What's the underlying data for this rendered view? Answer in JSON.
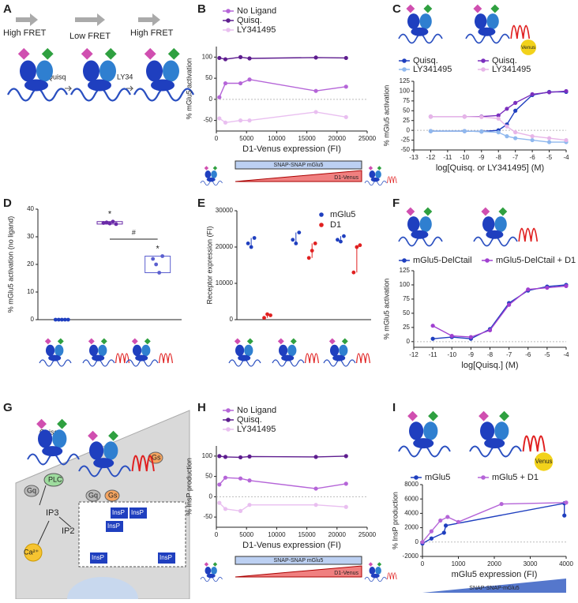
{
  "diagrams": {
    "A": {
      "panel": "A",
      "labels": [
        "High FRET",
        "Low FRET",
        "High FRET",
        "Quisq",
        "LY34"
      ]
    },
    "G": {
      "panel": "G",
      "labels": [
        "Quisq",
        "PLC",
        "Gq",
        "Gq",
        "Gs",
        "Gs",
        "IP3",
        "IP2",
        "Ca²⁺",
        "InsP",
        "InsP",
        "InsP",
        "InsP",
        "InsP"
      ]
    }
  },
  "chart_data": [
    {
      "panel": "B",
      "type": "line",
      "y_label": "% mGlu5 activation",
      "x_label": "D1-Venus expression (FI)",
      "x": [
        500,
        1500,
        4000,
        5500,
        16500,
        21500
      ],
      "series": [
        {
          "name": "No Ligand",
          "color": "#b565d8",
          "values": [
            5,
            38,
            38,
            47,
            20,
            30
          ]
        },
        {
          "name": "Quisq.",
          "color": "#5e1d8f",
          "values": [
            98,
            95,
            100,
            97,
            99,
            98
          ]
        },
        {
          "name": "LY341495",
          "color": "#e9bff0",
          "values": [
            -45,
            -55,
            -50,
            -50,
            -30,
            -42
          ]
        }
      ],
      "xlim": [
        0,
        25000
      ],
      "xticks": [
        0,
        5000,
        10000,
        15000,
        20000,
        25000
      ],
      "ylim": [
        -75,
        125
      ],
      "yticks": [
        -50,
        0,
        50,
        100
      ],
      "bar_labels": [
        "SNAP-SNAP mGlu5",
        "D1-Venus"
      ]
    },
    {
      "panel": "C",
      "type": "line",
      "y_label": "% mGlu5 activation",
      "x_label": "log[Quisq. or LY341495] (M)",
      "icon_label": "Venus",
      "x": [
        -12,
        -10,
        -9,
        -8,
        -7.5,
        -7,
        -6,
        -5,
        -4
      ],
      "series": [
        {
          "name": "Quisq.",
          "color": "#1f3fbf",
          "values": [
            -2,
            -2,
            -3,
            0,
            15,
            50,
            90,
            98,
            98
          ]
        },
        {
          "name": "LY341495",
          "color": "#8fb8ee",
          "values": [
            -2,
            -2,
            -3,
            -5,
            -15,
            -20,
            -25,
            -30,
            -30
          ]
        },
        {
          "name": "Quisq.",
          "color": "#7b2fbe",
          "values": [
            35,
            35,
            35,
            38,
            55,
            70,
            92,
            97,
            100
          ]
        },
        {
          "name": "LY341495",
          "color": "#e7b5e8",
          "values": [
            35,
            35,
            34,
            30,
            10,
            -5,
            -15,
            -20,
            -25
          ]
        }
      ],
      "xlim": [
        -13,
        -4
      ],
      "xticks": [
        -13,
        -12,
        -11,
        -10,
        -9,
        -8,
        -7,
        -6,
        -5,
        -4
      ],
      "ylim": [
        -50,
        125
      ],
      "yticks": [
        -50,
        -25,
        0,
        25,
        50,
        75,
        100,
        125
      ]
    },
    {
      "panel": "D",
      "type": "dot",
      "y_label": "% mGlu5 activation (no ligand)",
      "categories": [
        null,
        null,
        null
      ],
      "colors": [
        "#1f3fbf",
        "#6a2aa8",
        "#5b5fcf"
      ],
      "values": [
        [
          0,
          0,
          0,
          0,
          0
        ],
        [
          35,
          35.2,
          34.8,
          35.5,
          34.6
        ],
        [
          22,
          20,
          17,
          23
        ]
      ],
      "ylim": [
        0,
        40
      ],
      "yticks": [
        0,
        10,
        20,
        30,
        40
      ],
      "annotations": [
        "*",
        "*",
        "#"
      ]
    },
    {
      "panel": "E",
      "type": "dot",
      "y_label": "Receptor expression (FI)",
      "categories": [
        null,
        null,
        null
      ],
      "series": [
        {
          "name": "mGlu5",
          "color": "#1f3fbf",
          "values": [
            [
              21000,
              20000,
              22500
            ],
            [
              22000,
              21000,
              24000
            ],
            [
              22000,
              21500,
              23000
            ]
          ]
        },
        {
          "name": "D1",
          "color": "#e02020",
          "values": [
            [
              500,
              1500,
              1200
            ],
            [
              17000,
              19000,
              21000
            ],
            [
              13000,
              20000,
              20500
            ]
          ]
        }
      ],
      "ylim": [
        0,
        30000
      ],
      "yticks": [
        0,
        10000,
        20000,
        30000
      ]
    },
    {
      "panel": "F",
      "type": "line",
      "y_label": "% mGlu5 activation",
      "x_label": "log[Quisq.] (M)",
      "x": [
        -11,
        -10,
        -9,
        -8,
        -7,
        -6,
        -5,
        -4
      ],
      "series": [
        {
          "name": "mGlu5-DelCtail",
          "color": "#1f3fbf",
          "values": [
            5,
            8,
            5,
            22,
            68,
            90,
            97,
            100
          ]
        },
        {
          "name": "mGlu5-DelCtail + D1",
          "color": "#a040d0",
          "values": [
            28,
            10,
            8,
            20,
            65,
            92,
            95,
            98
          ]
        }
      ],
      "xlim": [
        -12,
        -4
      ],
      "xticks": [
        -12,
        -11,
        -10,
        -9,
        -8,
        -7,
        -6,
        -5,
        -4
      ],
      "ylim": [
        -10,
        125
      ],
      "yticks": [
        0,
        25,
        50,
        75,
        100,
        125
      ]
    },
    {
      "panel": "H",
      "type": "line",
      "y_label": "% InsP production",
      "x_label": "D1-Venus expression (FI)",
      "x": [
        500,
        1500,
        4000,
        5500,
        16500,
        21500
      ],
      "series": [
        {
          "name": "No Ligand",
          "color": "#b565d8",
          "values": [
            30,
            47,
            45,
            40,
            20,
            32
          ]
        },
        {
          "name": "Quisq.",
          "color": "#5e1d8f",
          "values": [
            100,
            98,
            97,
            99,
            98,
            100
          ]
        },
        {
          "name": "LY341495",
          "color": "#e9bff0",
          "values": [
            -15,
            -30,
            -35,
            -20,
            -20,
            -25
          ]
        }
      ],
      "xlim": [
        0,
        25000
      ],
      "xticks": [
        0,
        5000,
        10000,
        15000,
        20000,
        25000
      ],
      "ylim": [
        -75,
        125
      ],
      "yticks": [
        -50,
        0,
        50,
        100
      ],
      "bar_labels": [
        "SNAP-SNAP mGlu5",
        "D1-Venus"
      ]
    },
    {
      "panel": "I",
      "type": "line",
      "y_label": "% InsP production",
      "x_label": "mGlu5 expression (FI)",
      "icon_label": "Venus",
      "series": [
        {
          "name": "mGlu5",
          "color": "#1f3fbf",
          "x": [
            0,
            250,
            600,
            650,
            3950,
            3950
          ],
          "values": [
            -200,
            500,
            1300,
            2300,
            5400,
            3700
          ]
        },
        {
          "name": "mGlu5 + D1",
          "color": "#b565d8",
          "x": [
            0,
            250,
            500,
            700,
            1000,
            2200,
            4000
          ],
          "values": [
            0,
            1500,
            3000,
            3500,
            2800,
            5300,
            5500
          ]
        }
      ],
      "xlim": [
        0,
        4000
      ],
      "xticks": [
        0,
        1000,
        2000,
        3000,
        4000
      ],
      "ylim": [
        -2000,
        8000
      ],
      "yticks": [
        -2000,
        0,
        2000,
        4000,
        6000,
        8000
      ],
      "bar_labels": [
        "SNAP-SNAP-mGlu5"
      ]
    }
  ]
}
